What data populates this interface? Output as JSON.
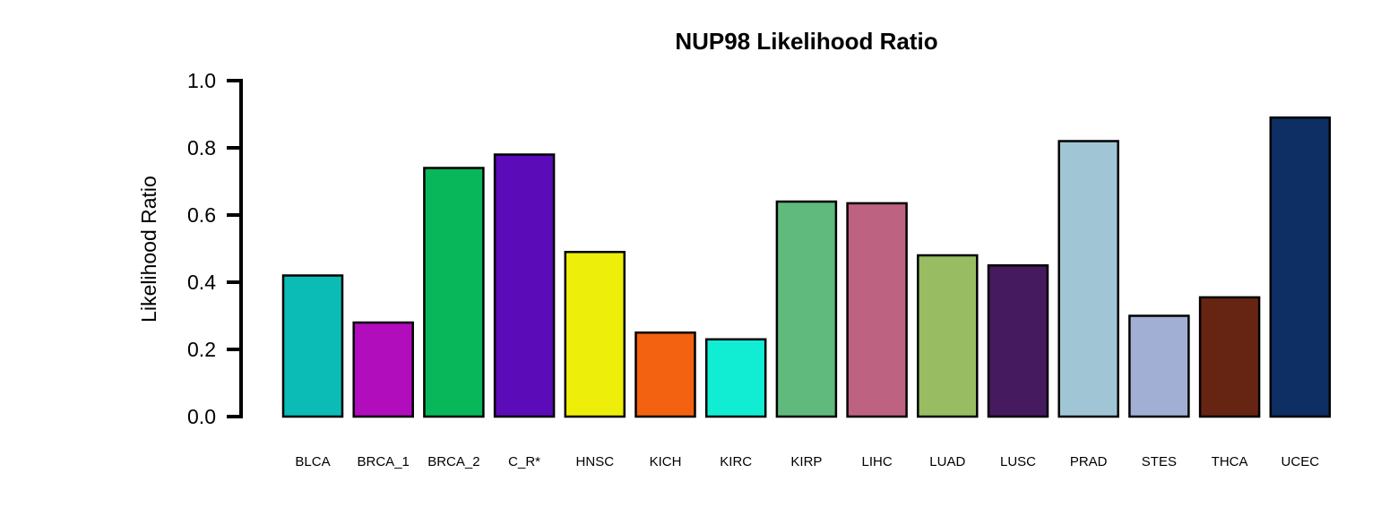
{
  "chart_data": {
    "type": "bar",
    "title": "NUP98 Likelihood Ratio",
    "xlabel": "",
    "ylabel": "Likelihood Ratio",
    "ylim": [
      0,
      1.0
    ],
    "yticks": [
      0.0,
      0.2,
      0.4,
      0.6,
      0.8,
      1.0
    ],
    "ytick_labels": [
      "0.0",
      "0.2",
      "0.4",
      "0.6",
      "0.8",
      "1.0"
    ],
    "grid": false,
    "categories": [
      "BLCA",
      "BRCA_1",
      "BRCA_2",
      "C_R*",
      "HNSC",
      "KICH",
      "KIRC",
      "KIRP",
      "LIHC",
      "LUAD",
      "LUSC",
      "PRAD",
      "STES",
      "THCA",
      "UCEC"
    ],
    "values": [
      0.42,
      0.28,
      0.74,
      0.78,
      0.49,
      0.25,
      0.23,
      0.64,
      0.635,
      0.48,
      0.45,
      0.82,
      0.3,
      0.355,
      0.89
    ],
    "colors": [
      "#0BBBB5",
      "#B10DBD",
      "#08B75A",
      "#5B0BB7",
      "#EEEE0B",
      "#F26210",
      "#10EDD3",
      "#60BA7D",
      "#BD6280",
      "#98BC62",
      "#461A5E",
      "#A0C6D5",
      "#A0AFD3",
      "#662512",
      "#0E2F63"
    ]
  }
}
